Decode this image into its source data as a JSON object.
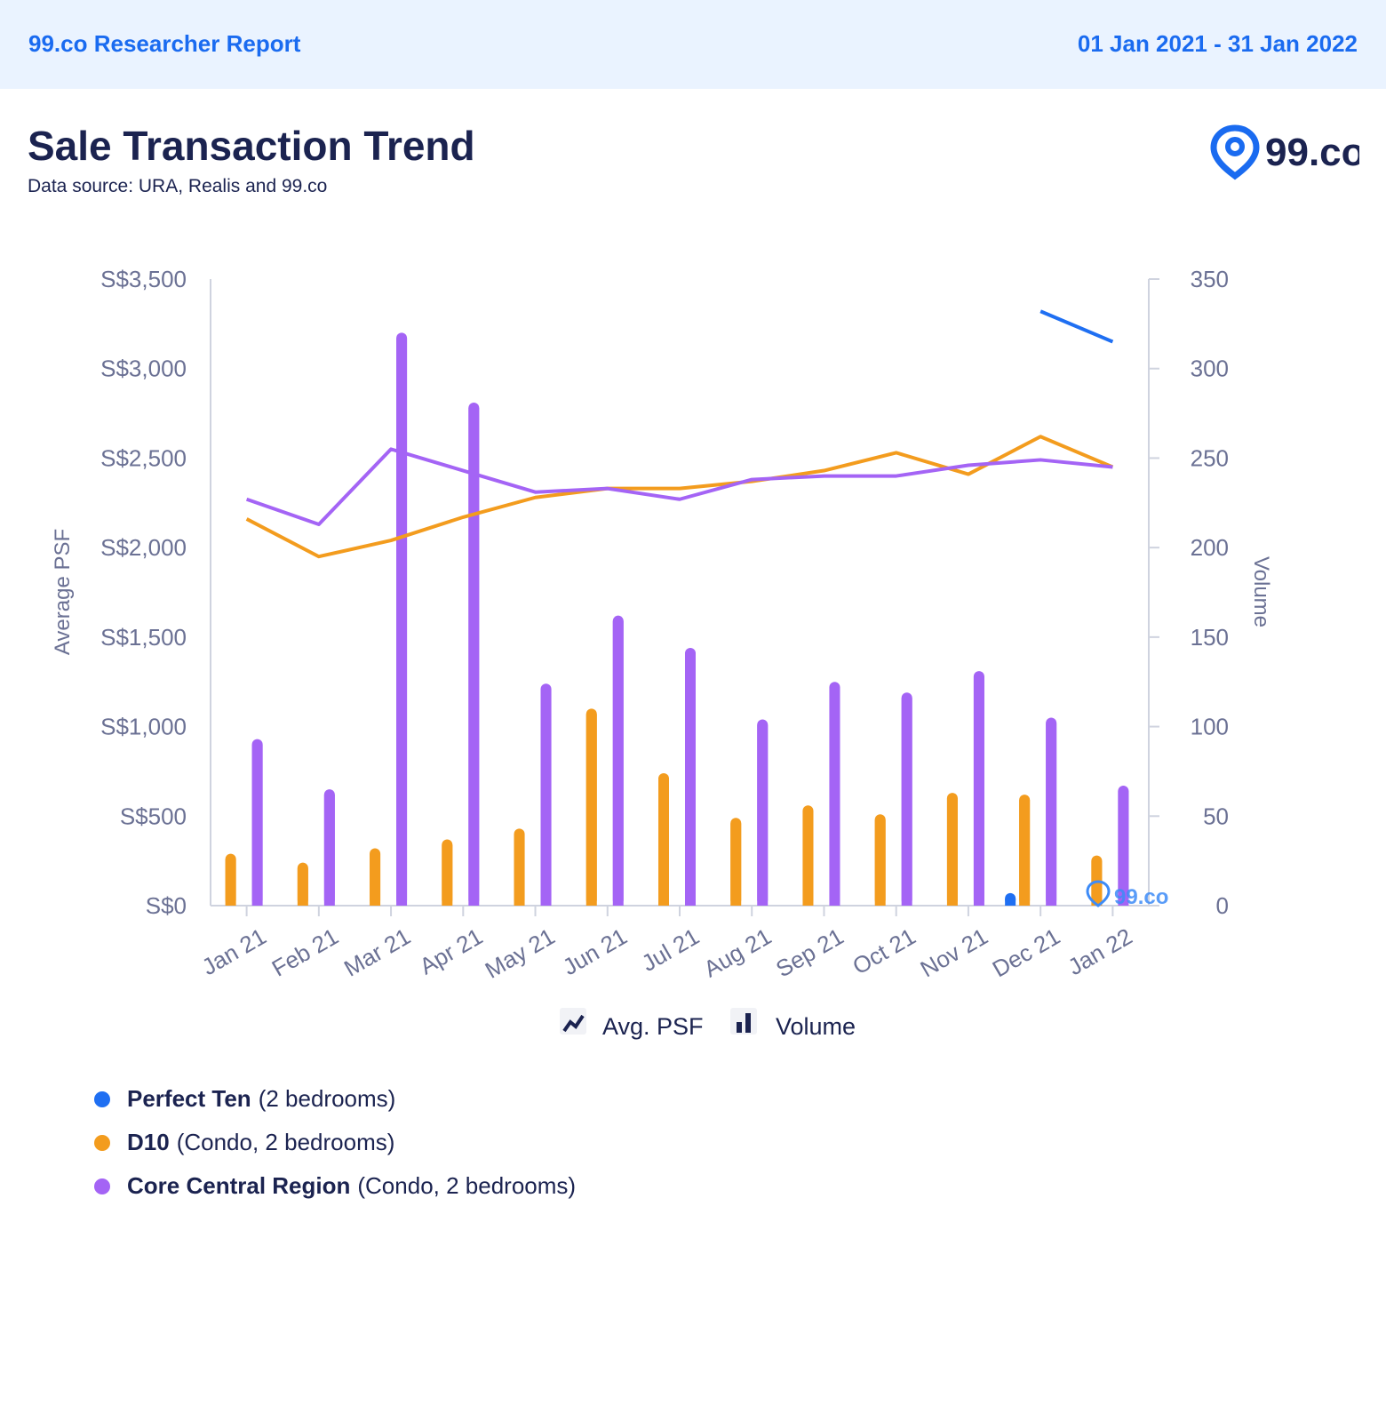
{
  "header": {
    "report_title": "99.co Researcher Report",
    "date_range": "01 Jan 2021 - 31 Jan 2022"
  },
  "page": {
    "title": "Sale Transaction Trend",
    "subtitle": "Data source: URA, Realis and 99.co"
  },
  "brand": {
    "logo_text": "99.co"
  },
  "colors": {
    "perfect_ten": "#1f6ff2",
    "d10": "#f39c1e",
    "ccr": "#a464f5",
    "text": "#1b2350",
    "axis_text": "#6b7194"
  },
  "chart_data": {
    "type": "bar+line",
    "categories": [
      "Jan 21",
      "Feb 21",
      "Mar 21",
      "Apr 21",
      "May 21",
      "Jun 21",
      "Jul 21",
      "Aug 21",
      "Sep 21",
      "Oct 21",
      "Nov 21",
      "Dec 21",
      "Jan 22"
    ],
    "y_left": {
      "label": "Average PSF",
      "range": [
        0,
        3500
      ],
      "ticks": [
        0,
        500,
        1000,
        1500,
        2000,
        2500,
        3000,
        3500
      ],
      "tick_labels": [
        "S$0",
        "S$500",
        "S$1,000",
        "S$1,500",
        "S$2,000",
        "S$2,500",
        "S$3,000",
        "S$3,500"
      ]
    },
    "y_right": {
      "label": "Volume",
      "range": [
        0,
        350
      ],
      "ticks": [
        0,
        50,
        100,
        150,
        200,
        250,
        300,
        350
      ],
      "tick_labels": [
        "0",
        "50",
        "100",
        "150",
        "200",
        "250",
        "300",
        "350"
      ]
    },
    "series": [
      {
        "name": "Perfect Ten",
        "color_key": "perfect_ten",
        "avg_psf": [
          null,
          null,
          null,
          null,
          null,
          null,
          null,
          null,
          null,
          null,
          null,
          3320,
          3150
        ],
        "volume": [
          null,
          null,
          null,
          null,
          null,
          null,
          null,
          null,
          null,
          null,
          null,
          7,
          null
        ]
      },
      {
        "name": "D10",
        "color_key": "d10",
        "avg_psf": [
          2160,
          1950,
          2040,
          2170,
          2280,
          2330,
          2330,
          2370,
          2430,
          2530,
          2410,
          2620,
          2450
        ],
        "volume": [
          29,
          24,
          32,
          37,
          43,
          110,
          74,
          49,
          56,
          51,
          63,
          62,
          28
        ]
      },
      {
        "name": "Core Central Region",
        "color_key": "ccr",
        "avg_psf": [
          2270,
          2130,
          2550,
          2430,
          2310,
          2330,
          2270,
          2380,
          2400,
          2400,
          2460,
          2490,
          2450
        ],
        "volume": [
          93,
          65,
          320,
          281,
          124,
          162,
          144,
          104,
          125,
          119,
          131,
          105,
          67
        ]
      }
    ],
    "legend_chart": [
      {
        "label": "Avg. PSF",
        "icon": "line-chart-icon"
      },
      {
        "label": "Volume",
        "icon": "bar-chart-icon"
      }
    ],
    "watermark": "99.co"
  },
  "legend": [
    {
      "name": "Perfect Ten",
      "detail": "(2 bedrooms)",
      "color_key": "perfect_ten"
    },
    {
      "name": "D10",
      "detail": "(Condo, 2 bedrooms)",
      "color_key": "d10"
    },
    {
      "name": "Core Central Region",
      "detail": "(Condo, 2 bedrooms)",
      "color_key": "ccr"
    }
  ]
}
